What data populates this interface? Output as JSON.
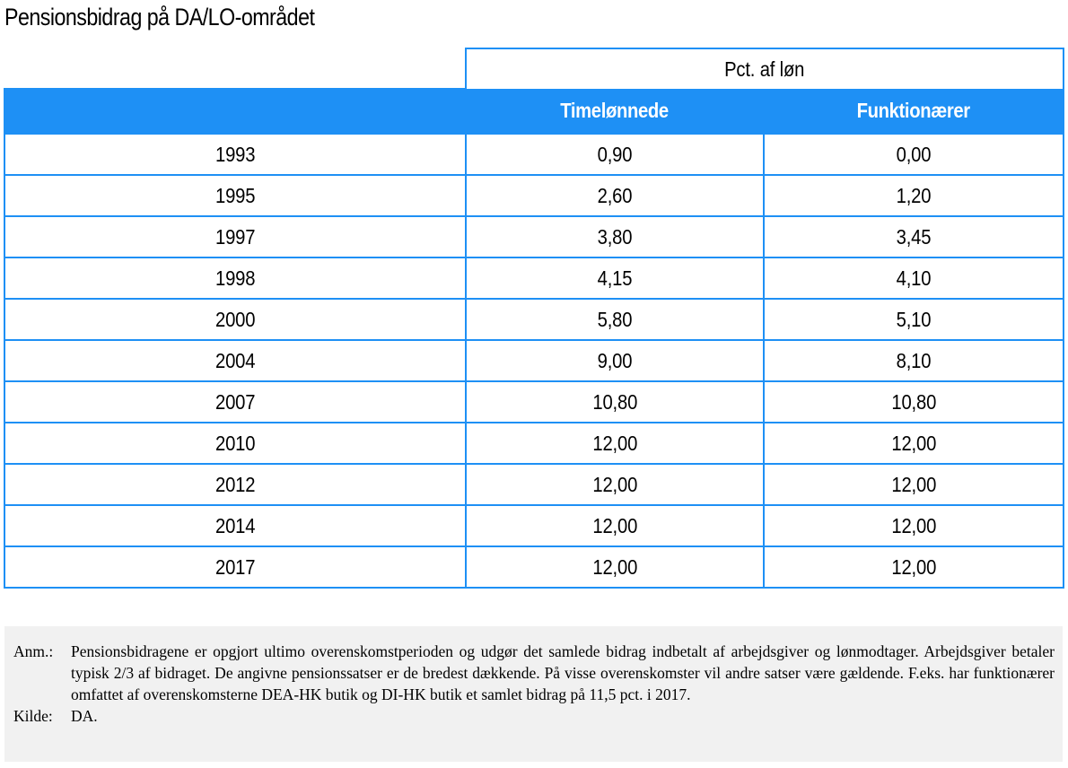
{
  "title": "Pensionsbidrag på DA/LO-området",
  "table": {
    "super_header": "Pct. af løn",
    "columns": [
      "",
      "Timelønnede",
      "Funktionærer"
    ],
    "rows": [
      [
        "1993",
        "0,90",
        "0,00"
      ],
      [
        "1995",
        "2,60",
        "1,20"
      ],
      [
        "1997",
        "3,80",
        "3,45"
      ],
      [
        "1998",
        "4,15",
        "4,10"
      ],
      [
        "2000",
        "5,80",
        "5,10"
      ],
      [
        "2004",
        "9,00",
        "8,10"
      ],
      [
        "2007",
        "10,80",
        "10,80"
      ],
      [
        "2010",
        "12,00",
        "12,00"
      ],
      [
        "2012",
        "12,00",
        "12,00"
      ],
      [
        "2014",
        "12,00",
        "12,00"
      ],
      [
        "2017",
        "12,00",
        "12,00"
      ]
    ]
  },
  "notes": {
    "anm_label": "Anm.:",
    "anm_text": "Pensionsbidragene er opgjort ultimo overenskomstperioden og udgør det samlede bidrag indbetalt af arbejdsgiver og lønmodtager. Arbejdsgiver betaler typisk 2/3 af bidraget. De angivne pensionssatser er de bredest dækkende. På visse overenskomster vil andre satser være gældende. F.eks. har funktionærer omfattet af overenskomsterne DEA-HK butik og DI-HK butik et samlet bidrag på 11,5 pct. i 2017.",
    "kilde_label": "Kilde:",
    "kilde_text": "DA."
  },
  "colors": {
    "header_blue": "#1e90f5",
    "note_background": "#f1f1f1"
  }
}
